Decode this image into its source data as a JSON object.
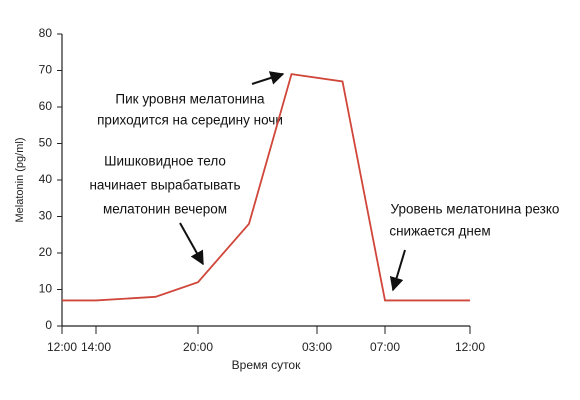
{
  "chart_data": {
    "type": "line",
    "x_label": "Время суток",
    "y_label": "Melatonin (pg/ml)",
    "x": [
      0,
      2,
      5.5,
      8,
      11,
      13.5,
      16.5,
      19,
      24
    ],
    "series": [
      {
        "color": "#d0463a",
        "values": [
          7,
          7,
          8,
          12,
          28,
          69,
          67,
          7,
          7
        ]
      }
    ],
    "xlim": [
      0,
      24
    ],
    "xticks": [
      {
        "value": 0,
        "label": "12:00"
      },
      {
        "value": 2,
        "label": "14:00"
      },
      {
        "value": 8,
        "label": "20:00"
      },
      {
        "value": 15,
        "label": "03:00"
      },
      {
        "value": 19,
        "label": "07:00"
      },
      {
        "value": 24,
        "label": "12:00"
      }
    ],
    "ylim": [
      0,
      80
    ],
    "yticks": [
      0,
      10,
      20,
      30,
      40,
      50,
      60,
      70,
      80
    ],
    "grid": false,
    "annotations": [
      {
        "lines": [
          "Пик уровня мелатонина",
          "приходится на середину ночи"
        ]
      },
      {
        "lines": [
          "Шишковидное тело",
          "начинает вырабатывать",
          "мелатонин вечером"
        ]
      },
      {
        "lines": [
          "Уровень мелатонина резко",
          "снижается днем"
        ]
      }
    ]
  }
}
